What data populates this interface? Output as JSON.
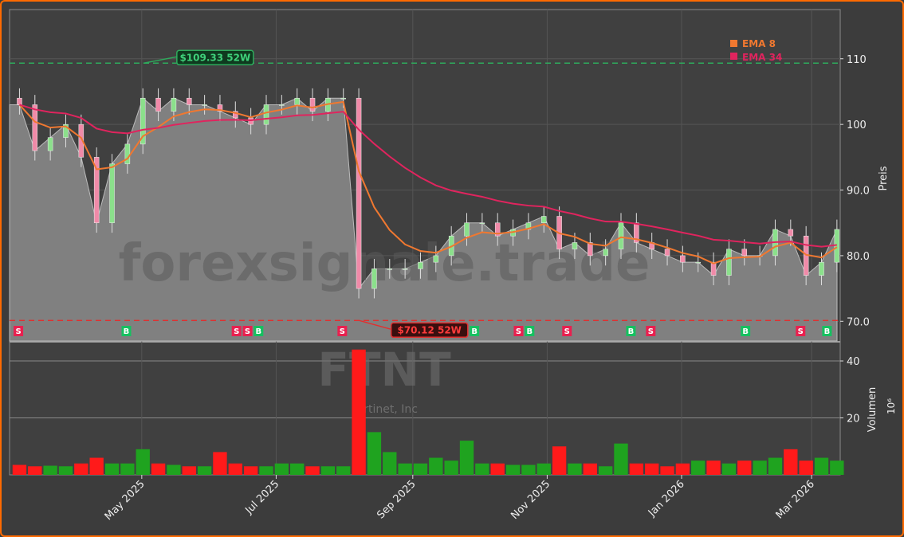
{
  "chart_data": {
    "type": "candlestick",
    "ticker": "FTNT",
    "company": "Fortinet, Inc",
    "watermark": "forexsignale.trade",
    "price_axis": {
      "label": "Preis",
      "ylim": [
        67,
        117.5
      ],
      "ticks": [
        "70.0",
        "80.0",
        "90.0",
        "100",
        "110"
      ],
      "tick_values": [
        70,
        80,
        90,
        100,
        110
      ]
    },
    "volume_axis": {
      "label": "Volumen",
      "unit": "10⁶",
      "ylim": [
        0,
        47
      ],
      "ticks": [
        "20",
        "40"
      ],
      "tick_values": [
        20,
        40
      ]
    },
    "x_ticks": [
      {
        "label": "May 2025",
        "date": "2025-05-01"
      },
      {
        "label": "Jul 2025",
        "date": "2025-07-01"
      },
      {
        "label": "Sep 2025",
        "date": "2025-09-01"
      },
      {
        "label": "Nov 2025",
        "date": "2025-11-01"
      },
      {
        "label": "Jan 2026",
        "date": "2026-01-01"
      },
      {
        "label": "Mar 2026",
        "date": "2026-03-01"
      }
    ],
    "x_range": [
      "2025-03-02",
      "2026-03-14"
    ],
    "grid": true,
    "legend": {
      "placement": "top-right",
      "items": [
        {
          "name": "EMA 8",
          "color": "#f07830"
        },
        {
          "name": "EMA 34",
          "color": "#e0245e"
        }
      ]
    },
    "weeks": [
      "2025-03-03",
      "2025-03-10",
      "2025-03-17",
      "2025-03-24",
      "2025-03-31",
      "2025-04-07",
      "2025-04-14",
      "2025-04-21",
      "2025-04-28",
      "2025-05-05",
      "2025-05-12",
      "2025-05-19",
      "2025-05-26",
      "2025-06-02",
      "2025-06-09",
      "2025-06-16",
      "2025-06-23",
      "2025-06-30",
      "2025-07-07",
      "2025-07-14",
      "2025-07-21",
      "2025-07-28",
      "2025-08-04",
      "2025-08-11",
      "2025-08-18",
      "2025-08-25",
      "2025-09-01",
      "2025-09-08",
      "2025-09-15",
      "2025-09-22",
      "2025-09-29",
      "2025-10-06",
      "2025-10-13",
      "2025-10-20",
      "2025-10-27",
      "2025-11-03",
      "2025-11-10",
      "2025-11-17",
      "2025-11-24",
      "2025-12-01",
      "2025-12-08",
      "2025-12-15",
      "2025-12-22",
      "2025-12-29",
      "2026-01-05",
      "2026-01-12",
      "2026-01-19",
      "2026-01-26",
      "2026-02-02",
      "2026-02-09",
      "2026-02-16",
      "2026-02-23",
      "2026-03-02",
      "2026-03-09"
    ],
    "close": [
      103,
      96,
      98,
      100,
      95,
      85,
      94,
      97,
      104,
      102,
      104,
      103,
      103,
      102,
      101,
      100,
      103,
      103,
      104,
      102,
      104,
      104,
      75,
      78,
      78,
      78,
      79,
      80,
      83,
      85,
      85,
      83,
      84,
      85,
      86,
      81,
      82,
      80,
      81,
      85,
      82,
      81,
      80,
      79,
      79,
      77,
      81,
      80,
      80,
      84,
      83,
      77,
      79,
      84
    ],
    "volume": [
      3.5,
      3,
      3.2,
      3,
      4,
      6,
      4,
      4,
      9,
      4,
      3.5,
      3,
      3,
      8,
      4,
      3,
      3,
      4,
      4,
      3,
      3,
      3,
      44,
      15,
      8,
      4,
      4,
      6,
      5,
      12,
      4,
      4,
      3.5,
      3.5,
      4,
      10,
      4,
      4,
      3,
      11,
      4,
      4,
      3,
      4,
      5,
      5,
      4,
      5,
      5,
      6,
      9,
      5,
      6,
      5
    ],
    "annotations": [
      {
        "label": "$109.33 52W",
        "value": 109.33,
        "date": "2025-05-01",
        "color": "#2eaa5c",
        "type": "52w-high"
      },
      {
        "label": "$70.12 52W",
        "value": 70.12,
        "date": "2025-08-07",
        "color": "#e03030",
        "type": "52w-low"
      }
    ],
    "signals": [
      {
        "t": "S",
        "date": "2025-03-06"
      },
      {
        "t": "B",
        "date": "2025-04-24"
      },
      {
        "t": "S",
        "date": "2025-06-13"
      },
      {
        "t": "S",
        "date": "2025-06-18"
      },
      {
        "t": "B",
        "date": "2025-06-23"
      },
      {
        "t": "S",
        "date": "2025-07-31"
      },
      {
        "t": "B",
        "date": "2025-09-29"
      },
      {
        "t": "S",
        "date": "2025-10-19"
      },
      {
        "t": "B",
        "date": "2025-10-24"
      },
      {
        "t": "S",
        "date": "2025-11-10"
      },
      {
        "t": "B",
        "date": "2025-12-09"
      },
      {
        "t": "S",
        "date": "2025-12-18"
      },
      {
        "t": "B",
        "date": "2026-01-30"
      },
      {
        "t": "S",
        "date": "2026-02-24"
      },
      {
        "t": "B",
        "date": "2026-03-08"
      }
    ],
    "colors": {
      "up": "#1fa31f",
      "down": "#ff1a1a",
      "buy": "#16c060",
      "sell": "#e8204f",
      "area": "#808080"
    }
  }
}
